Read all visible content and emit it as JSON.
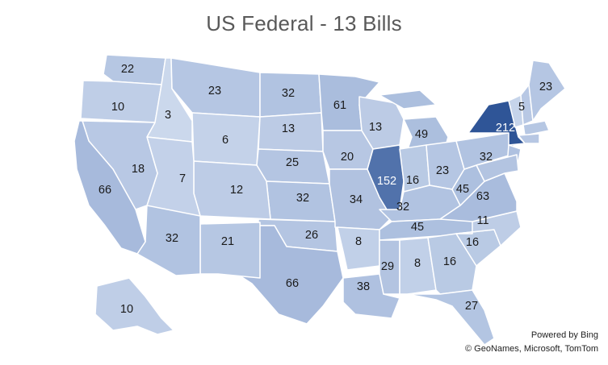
{
  "title": "US Federal - 13 Bills",
  "credits": {
    "line1": "Powered by Bing",
    "line2": "© GeoNames, Microsoft, TomTom"
  },
  "legend_colors": {
    "low": "#dce6f4",
    "mid": "#a9bcdd",
    "high": "#2f5597"
  },
  "states": [
    {
      "id": "WA",
      "label": "22"
    },
    {
      "id": "OR",
      "label": "10"
    },
    {
      "id": "ID",
      "label": "3"
    },
    {
      "id": "MT",
      "label": "23"
    },
    {
      "id": "WY",
      "label": "6"
    },
    {
      "id": "ND",
      "label": "32"
    },
    {
      "id": "SD",
      "label": "13"
    },
    {
      "id": "NE",
      "label": "25"
    },
    {
      "id": "KS",
      "label": "32"
    },
    {
      "id": "OK",
      "label": "26"
    },
    {
      "id": "TX",
      "label": "66"
    },
    {
      "id": "CA",
      "label": "66"
    },
    {
      "id": "NV",
      "label": "18"
    },
    {
      "id": "UT",
      "label": "7"
    },
    {
      "id": "CO",
      "label": "12"
    },
    {
      "id": "AZ",
      "label": "32"
    },
    {
      "id": "NM",
      "label": "21"
    },
    {
      "id": "MN",
      "label": "61"
    },
    {
      "id": "IA",
      "label": "20"
    },
    {
      "id": "MO",
      "label": "34"
    },
    {
      "id": "AR",
      "label": "8"
    },
    {
      "id": "LA",
      "label": "38"
    },
    {
      "id": "WI",
      "label": "13"
    },
    {
      "id": "IL",
      "label": "152"
    },
    {
      "id": "MI",
      "label": "49"
    },
    {
      "id": "IN",
      "label": "16"
    },
    {
      "id": "OH",
      "label": "23"
    },
    {
      "id": "KY",
      "label": "32"
    },
    {
      "id": "TN",
      "label": "45"
    },
    {
      "id": "MS",
      "label": "29"
    },
    {
      "id": "AL",
      "label": "8"
    },
    {
      "id": "GA",
      "label": "16"
    },
    {
      "id": "FL",
      "label": "27"
    },
    {
      "id": "SC",
      "label": "16"
    },
    {
      "id": "NC",
      "label": "11"
    },
    {
      "id": "VA",
      "label": "63"
    },
    {
      "id": "WV",
      "label": "45"
    },
    {
      "id": "PA",
      "label": "32"
    },
    {
      "id": "NY",
      "label": "212"
    },
    {
      "id": "VT",
      "label": "5"
    },
    {
      "id": "ME",
      "label": "23"
    },
    {
      "id": "AK",
      "label": "10"
    }
  ]
}
